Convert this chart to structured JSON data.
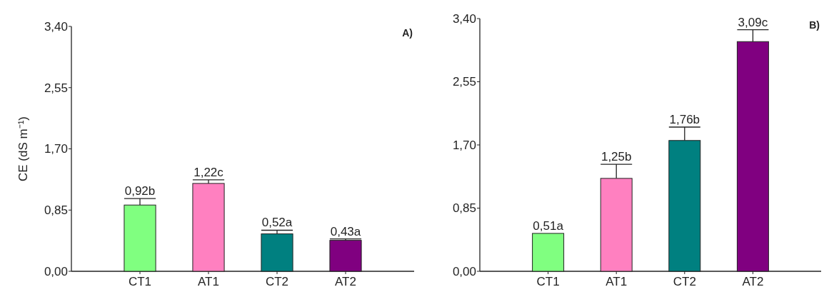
{
  "chart_data": [
    {
      "type": "bar",
      "title": "A)",
      "ylabel": "CE   (dS m⁻¹)",
      "categories": [
        "CT1",
        "AT1",
        "CT2",
        "AT2"
      ],
      "values": [
        0.92,
        1.22,
        0.52,
        0.43
      ],
      "errors": [
        0.09,
        0.05,
        0.05,
        0.02
      ],
      "colors": [
        "#80ff80",
        "#ff80c0",
        "#008080",
        "#800080"
      ],
      "value_labels": [
        "0,92b",
        "1,22c",
        "0,52a",
        "0,43a"
      ],
      "ylim": [
        0,
        3.4
      ],
      "yticks": [
        {
          "value": 0,
          "label": "0,00"
        },
        {
          "value": 0.85,
          "label": "0,85"
        },
        {
          "value": 1.7,
          "label": "1,70"
        },
        {
          "value": 2.55,
          "label": "2,55"
        },
        {
          "value": 3.4,
          "label": "3,40"
        }
      ]
    },
    {
      "type": "bar",
      "title": "B)",
      "categories": [
        "CT1",
        "AT1",
        "CT2",
        "AT2"
      ],
      "values": [
        0.51,
        1.25,
        1.76,
        3.09
      ],
      "errors": [
        null,
        0.19,
        0.18,
        0.16
      ],
      "colors": [
        "#80ff80",
        "#ff80c0",
        "#008080",
        "#800080"
      ],
      "value_labels": [
        "0,51a",
        "1,25b",
        "1,76b",
        "3,09c"
      ],
      "ylim": [
        0,
        3.4
      ],
      "yticks": [
        {
          "value": 0,
          "label": "0,00"
        },
        {
          "value": 0.85,
          "label": "0,85"
        },
        {
          "value": 1.7,
          "label": "1,70"
        },
        {
          "value": 2.55,
          "label": "2,55"
        },
        {
          "value": 3.4,
          "label": "3,40"
        }
      ]
    }
  ]
}
